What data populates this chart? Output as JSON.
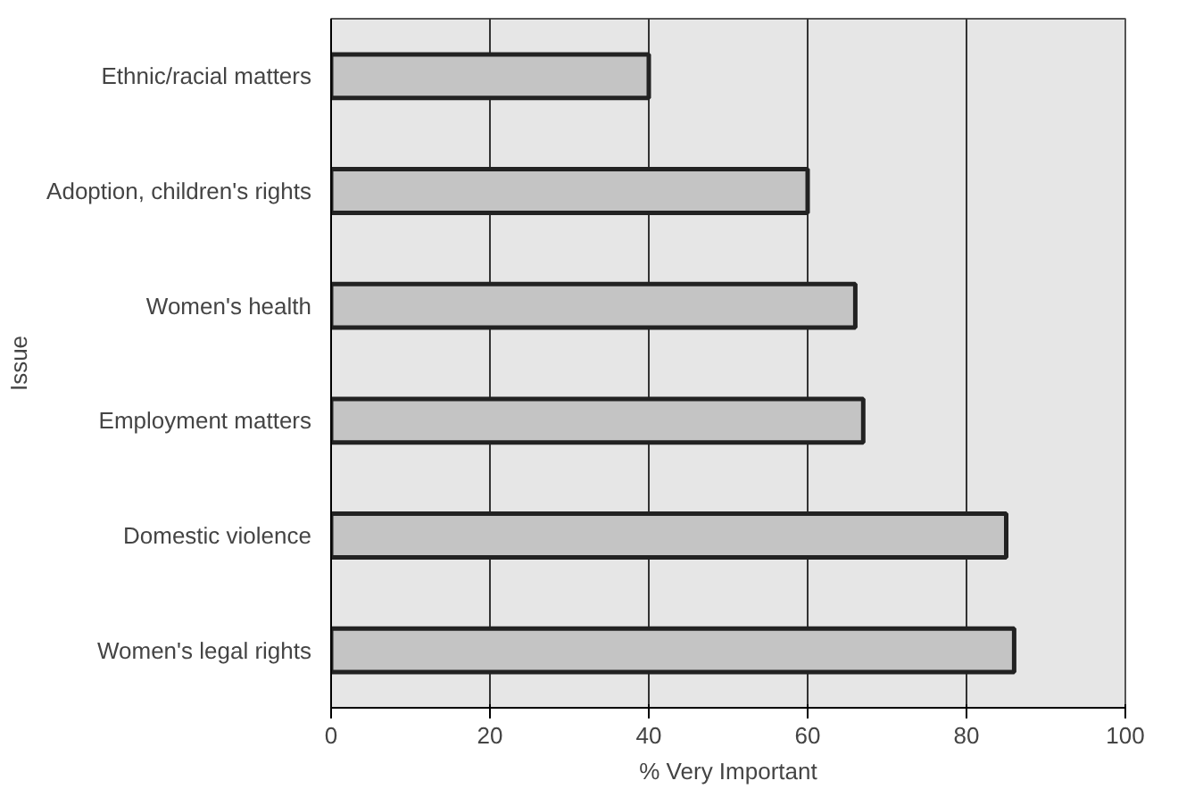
{
  "chart_data": {
    "type": "bar",
    "orientation": "horizontal",
    "ylabel": "Issue",
    "xlabel": "% Very Important",
    "categories": [
      "Ethnic/racial matters",
      "Adoption, children's rights",
      "Women's health",
      "Employment matters",
      "Domestic violence",
      "Women's legal rights"
    ],
    "values": [
      40,
      60,
      66,
      67,
      85,
      86
    ],
    "color": "#c4c4c4",
    "xlim": [
      0,
      100
    ],
    "xticks": [
      0,
      20,
      40,
      60,
      80,
      100
    ],
    "grid": "x"
  }
}
